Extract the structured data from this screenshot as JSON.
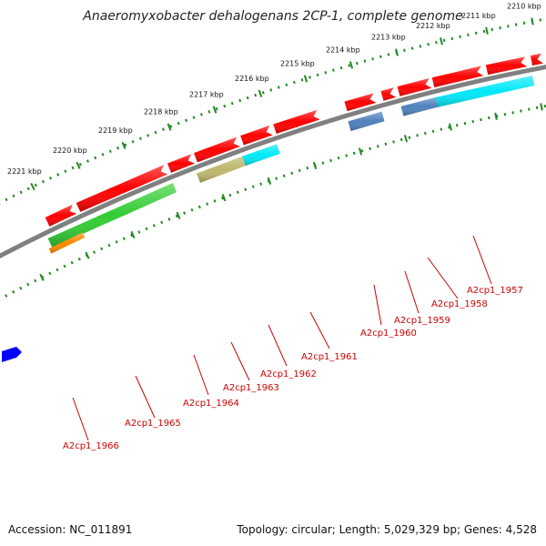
{
  "title": "Anaeromyxobacter dehalogenans 2CP-1, complete genome",
  "scale_labels": [
    "2210 kbp",
    "2211 kbp",
    "2212 kbp",
    "2213 kbp",
    "2214 kbp",
    "2215 kbp",
    "2216 kbp",
    "2217 kbp",
    "2218 kbp",
    "2219 kbp",
    "2220 kbp",
    "2221 kbp"
  ],
  "genes": [
    {
      "name": "A2cp1_1957",
      "color": "#ff0000"
    },
    {
      "name": "A2cp1_1958",
      "color": "#00e8f8"
    },
    {
      "name": "A2cp1_1959",
      "color": "#4f81bd"
    },
    {
      "name": "A2cp1_1960",
      "color": "#4f81bd"
    },
    {
      "name": "A2cp1_1961",
      "color": "#ff0000"
    },
    {
      "name": "A2cp1_1962",
      "color": "#00e8f8"
    },
    {
      "name": "A2cp1_1963",
      "color": "#bdb76b"
    },
    {
      "name": "A2cp1_1964",
      "color": "#ff0000"
    },
    {
      "name": "A2cp1_1965",
      "color": "#33cc33"
    },
    {
      "name": "A2cp1_1966",
      "color": "#ff8800"
    }
  ],
  "colors": {
    "backbone": "#808080",
    "scale_dots": "#228822",
    "label": "#cc0000",
    "forward_strand": "#ff0000",
    "edge_feature": "#0000ff"
  },
  "footer": {
    "accession": "Accession: NC_011891",
    "summary": "Topology: circular; Length: 5,029,329 bp; Genes: 4,528"
  }
}
